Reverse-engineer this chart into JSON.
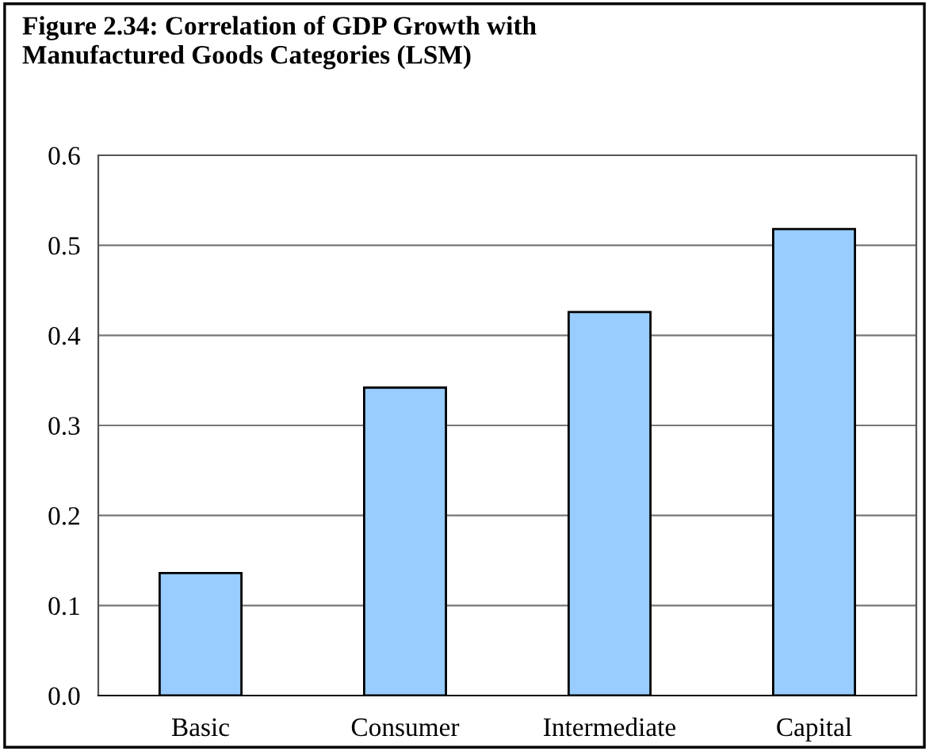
{
  "chart_data": {
    "type": "bar",
    "title": "Figure 2.34: Correlation of GDP Growth with\nManufactured Goods Categories (LSM)",
    "categories": [
      "Basic",
      "Consumer",
      "Intermediate",
      "Capital"
    ],
    "values": [
      0.136,
      0.342,
      0.426,
      0.518
    ],
    "color": "#99ccff",
    "ylim": [
      0,
      0.6
    ],
    "yticks": [
      {
        "value": 0,
        "label": "0.0"
      },
      0.1,
      0.2,
      0.3,
      0.4,
      0.5,
      0.6
    ],
    "grid": "y"
  }
}
